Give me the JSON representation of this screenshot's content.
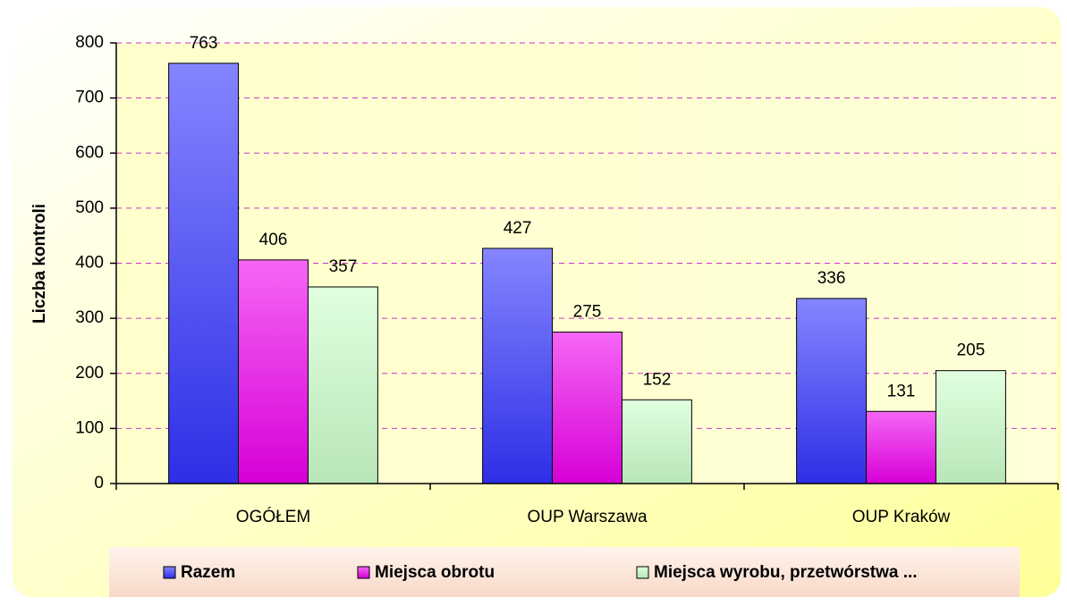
{
  "chart_data": {
    "type": "bar",
    "y_label": "Liczba kontroli",
    "categories": [
      "OGÓŁEM",
      "OUP Warszawa",
      "OUP Kraków"
    ],
    "series": [
      {
        "name": "Razem",
        "color": "#3333ff",
        "values": [
          763,
          427,
          336
        ]
      },
      {
        "name": "Miejsca obrotu",
        "color": "#ee00ee",
        "values": [
          406,
          275,
          131
        ]
      },
      {
        "name": "Miejsca wyrobu, przetwórstwa ...",
        "color": "#ccffcc",
        "values": [
          357,
          152,
          205
        ]
      }
    ],
    "ylim": [
      0,
      800
    ],
    "yticks": [
      0,
      100,
      200,
      300,
      400,
      500,
      600,
      700,
      800
    ],
    "grid": true,
    "legend": "bottom"
  }
}
